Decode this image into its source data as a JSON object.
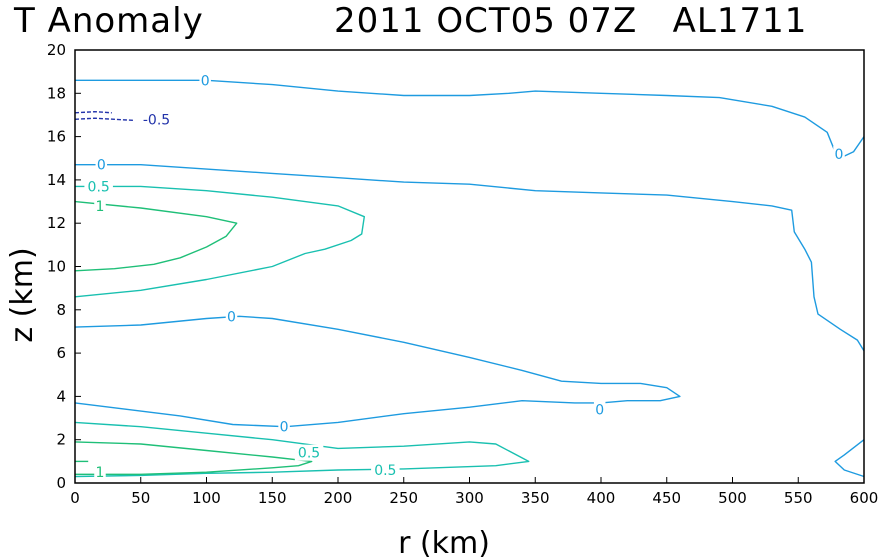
{
  "chart_data": {
    "type": "contour",
    "title_left": "T Anomaly",
    "title_right": "2011 OCT05 07Z   AL1711",
    "xlabel": "r (km)",
    "ylabel": "z (km)",
    "xlim": [
      0,
      600
    ],
    "ylim": [
      0,
      20
    ],
    "xticks": [
      0,
      50,
      100,
      150,
      200,
      250,
      300,
      350,
      400,
      450,
      500,
      550,
      600
    ],
    "yticks": [
      0,
      2,
      4,
      6,
      8,
      10,
      12,
      14,
      16,
      18,
      20
    ],
    "grid": false,
    "colors": {
      "zero": "#1e9be0",
      "half": "#19c0b0",
      "one": "#1fbf78",
      "neg": "#2233aa"
    },
    "contours": [
      {
        "level": "0",
        "color": "zero",
        "dash": false,
        "points": [
          [
            0,
            18.6
          ],
          [
            50,
            18.6
          ],
          [
            100,
            18.6
          ],
          [
            150,
            18.4
          ],
          [
            200,
            18.1
          ],
          [
            250,
            17.9
          ],
          [
            300,
            17.9
          ],
          [
            330,
            18.0
          ],
          [
            350,
            18.1
          ],
          [
            400,
            18.0
          ],
          [
            450,
            17.9
          ],
          [
            490,
            17.8
          ],
          [
            530,
            17.4
          ],
          [
            555,
            16.9
          ],
          [
            572,
            16.2
          ],
          [
            578,
            15.3
          ],
          [
            585,
            15.1
          ],
          [
            592,
            15.3
          ],
          [
            600,
            16.0
          ]
        ]
      },
      {
        "level": "0",
        "color": "zero",
        "dash": false,
        "points": [
          [
            0,
            14.7
          ],
          [
            50,
            14.7
          ],
          [
            100,
            14.5
          ],
          [
            150,
            14.3
          ],
          [
            200,
            14.1
          ],
          [
            250,
            13.9
          ],
          [
            300,
            13.8
          ],
          [
            350,
            13.5
          ],
          [
            400,
            13.4
          ],
          [
            450,
            13.3
          ],
          [
            500,
            13.0
          ],
          [
            530,
            12.8
          ],
          [
            545,
            12.6
          ],
          [
            547,
            11.6
          ],
          [
            555,
            10.8
          ],
          [
            560,
            10.2
          ],
          [
            562,
            8.6
          ],
          [
            565,
            7.8
          ],
          [
            582,
            7.1
          ],
          [
            595,
            6.6
          ],
          [
            600,
            6.1
          ]
        ]
      },
      {
        "level": "0",
        "color": "zero",
        "dash": false,
        "points": [
          [
            0,
            7.2
          ],
          [
            50,
            7.3
          ],
          [
            100,
            7.6
          ],
          [
            125,
            7.7
          ],
          [
            150,
            7.6
          ],
          [
            200,
            7.1
          ],
          [
            250,
            6.5
          ],
          [
            300,
            5.8
          ],
          [
            340,
            5.2
          ],
          [
            370,
            4.7
          ],
          [
            400,
            4.6
          ],
          [
            430,
            4.6
          ],
          [
            450,
            4.4
          ],
          [
            460,
            4.0
          ],
          [
            445,
            3.8
          ],
          [
            420,
            3.8
          ],
          [
            400,
            3.7
          ],
          [
            380,
            3.7
          ],
          [
            340,
            3.8
          ],
          [
            300,
            3.5
          ],
          [
            250,
            3.2
          ],
          [
            200,
            2.8
          ],
          [
            160,
            2.6
          ],
          [
            120,
            2.7
          ],
          [
            80,
            3.1
          ],
          [
            40,
            3.4
          ],
          [
            0,
            3.7
          ]
        ]
      },
      {
        "level": "0",
        "color": "zero",
        "dash": false,
        "points": [
          [
            600,
            2.0
          ],
          [
            585,
            1.3
          ],
          [
            578,
            1.0
          ],
          [
            585,
            0.6
          ],
          [
            600,
            0.3
          ]
        ]
      },
      {
        "level": "0.5",
        "color": "half",
        "dash": false,
        "points": [
          [
            0,
            13.7
          ],
          [
            50,
            13.7
          ],
          [
            100,
            13.5
          ],
          [
            150,
            13.2
          ],
          [
            200,
            12.8
          ],
          [
            220,
            12.3
          ],
          [
            218,
            11.5
          ],
          [
            210,
            11.2
          ],
          [
            190,
            10.8
          ],
          [
            175,
            10.6
          ],
          [
            150,
            10.0
          ],
          [
            100,
            9.4
          ],
          [
            50,
            8.9
          ],
          [
            0,
            8.6
          ]
        ]
      },
      {
        "level": "0.5",
        "color": "half",
        "dash": false,
        "points": [
          [
            0,
            2.8
          ],
          [
            50,
            2.6
          ],
          [
            100,
            2.3
          ],
          [
            150,
            2.0
          ],
          [
            200,
            1.6
          ],
          [
            250,
            1.7
          ],
          [
            300,
            1.9
          ],
          [
            320,
            1.8
          ],
          [
            345,
            1.0
          ],
          [
            320,
            0.8
          ],
          [
            250,
            0.65
          ],
          [
            200,
            0.6
          ],
          [
            150,
            0.5
          ],
          [
            100,
            0.45
          ],
          [
            50,
            0.35
          ],
          [
            0,
            0.3
          ]
        ]
      },
      {
        "level": "1",
        "color": "one",
        "dash": false,
        "points": [
          [
            0,
            13.0
          ],
          [
            50,
            12.7
          ],
          [
            100,
            12.3
          ],
          [
            123,
            12.0
          ],
          [
            115,
            11.4
          ],
          [
            100,
            10.9
          ],
          [
            80,
            10.4
          ],
          [
            60,
            10.1
          ],
          [
            30,
            9.9
          ],
          [
            0,
            9.8
          ]
        ]
      },
      {
        "level": "1",
        "color": "one",
        "dash": false,
        "points": [
          [
            0,
            1.9
          ],
          [
            50,
            1.8
          ],
          [
            100,
            1.5
          ],
          [
            150,
            1.2
          ],
          [
            180,
            1.0
          ],
          [
            170,
            0.8
          ],
          [
            150,
            0.7
          ],
          [
            100,
            0.5
          ],
          [
            50,
            0.4
          ],
          [
            0,
            0.4
          ]
        ]
      },
      {
        "level": "1",
        "color": "one",
        "dash": false,
        "points": [
          [
            0,
            1.0
          ],
          [
            10,
            1.0
          ]
        ]
      },
      {
        "level": "-0.5",
        "color": "neg",
        "dash": true,
        "points": [
          [
            0,
            16.8
          ],
          [
            15,
            16.85
          ],
          [
            30,
            16.8
          ],
          [
            45,
            16.75
          ]
        ]
      },
      {
        "level": "-0.5",
        "color": "neg",
        "dash": true,
        "points": [
          [
            0,
            17.1
          ],
          [
            15,
            17.15
          ],
          [
            28,
            17.1
          ]
        ]
      }
    ],
    "labels": [
      {
        "text": "0",
        "x": 99,
        "y": 18.6,
        "color": "zero"
      },
      {
        "text": "-0.5",
        "x": 62,
        "y": 16.8,
        "color": "neg"
      },
      {
        "text": "0",
        "x": 20,
        "y": 14.7,
        "color": "zero"
      },
      {
        "text": "0",
        "x": 581,
        "y": 15.2,
        "color": "zero"
      },
      {
        "text": "0.5",
        "x": 18,
        "y": 13.7,
        "color": "half"
      },
      {
        "text": "1",
        "x": 19,
        "y": 12.8,
        "color": "one"
      },
      {
        "text": "0",
        "x": 119,
        "y": 7.7,
        "color": "zero"
      },
      {
        "text": "0",
        "x": 399,
        "y": 3.4,
        "color": "zero"
      },
      {
        "text": "0",
        "x": 159,
        "y": 2.6,
        "color": "zero"
      },
      {
        "text": "0.5",
        "x": 178,
        "y": 1.4,
        "color": "half"
      },
      {
        "text": "0.5",
        "x": 236,
        "y": 0.6,
        "color": "half"
      },
      {
        "text": "1",
        "x": 19,
        "y": 0.5,
        "color": "one"
      }
    ]
  }
}
